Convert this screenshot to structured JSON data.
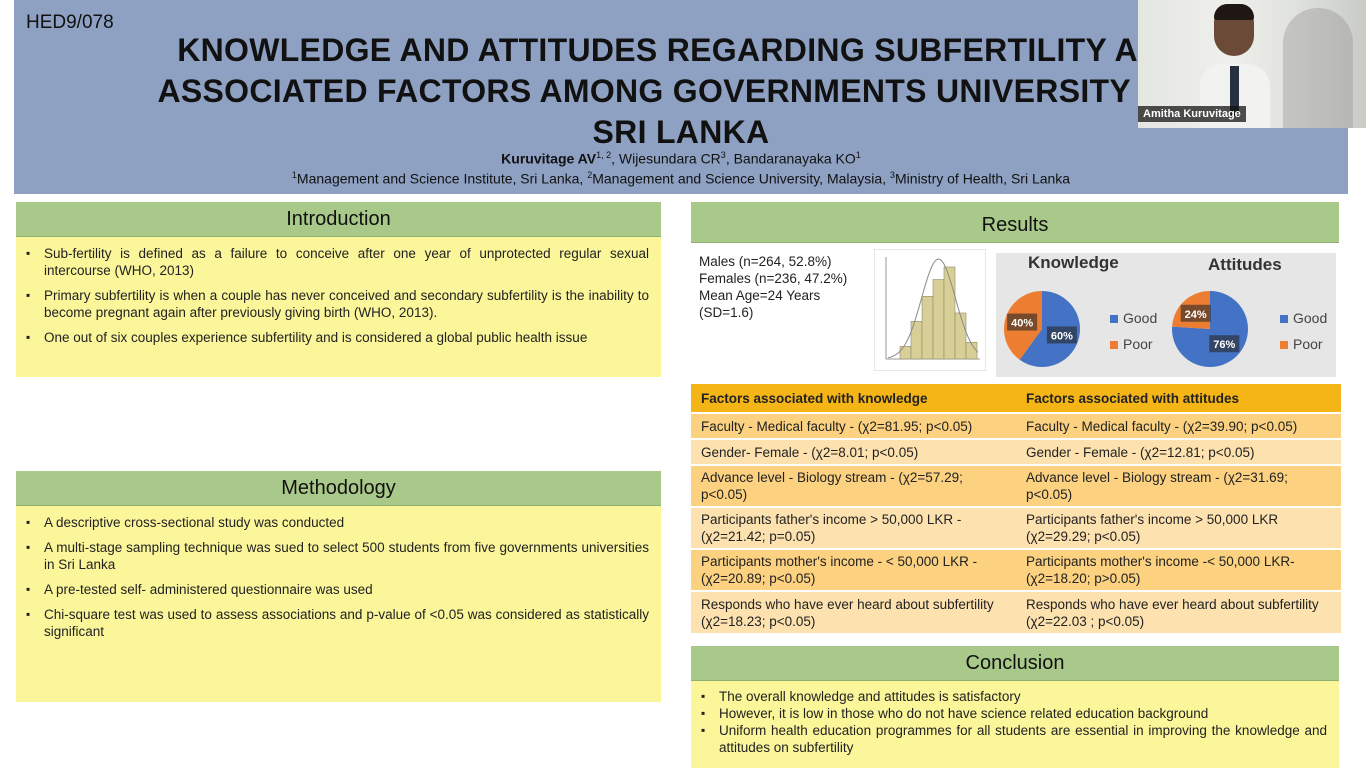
{
  "header": {
    "code": "HED9/078",
    "title_lines": [
      "KNOWLEDGE AND ATTITUDES REGARDING SUBFERTILITY AND",
      "ASSOCIATED FACTORS AMONG GOVERNMENTS UNIVERSITY STU",
      "SRI LANKA"
    ],
    "first_author": "Kuruvitage AV",
    "first_author_sup": "1, 2",
    "other_authors": ", Wijesundara CR",
    "sup_3": "3",
    "sep": ", Bandaranayaka KO",
    "sup_1": "1",
    "affiliations": [
      {
        "sup": "1",
        "text": "Management and Science Institute, Sri Lanka, "
      },
      {
        "sup": "2",
        "text": "Management and Science University, Malaysia, "
      },
      {
        "sup": "3",
        "text": "Ministry of Health, Sri Lanka"
      }
    ]
  },
  "video": {
    "participant_name": "Amitha Kuruvitage"
  },
  "introduction": {
    "heading": "Introduction",
    "bullets": [
      "Sub-fertility is defined as a failure to conceive after one year of unprotected regular sexual intercourse (WHO, 2013)",
      "Primary subfertility is when a couple has never conceived and secondary subfertility is the inability to become pregnant again after previously giving birth (WHO, 2013).",
      "One out of six couples experience subfertility and is considered a global public health issue"
    ]
  },
  "methodology": {
    "heading": "Methodology",
    "bullets": [
      "A descriptive cross-sectional study was conducted",
      "A multi-stage sampling technique was sued to select 500 students from five governments universities in Sri Lanka",
      "A pre-tested self- administered questionnaire was used",
      "Chi-square test was used to assess associations and p-value of <0.05 was considered as statistically significant"
    ]
  },
  "results": {
    "heading": "Results",
    "demographics": [
      "Males (n=264, 52.8%)",
      "Females (n=236, 47.2%)",
      "Mean Age=24 Years",
      "(SD=1.6)"
    ],
    "histogram_bins": [
      3,
      9,
      15,
      19,
      22,
      11,
      4
    ],
    "knowledge": {
      "title": "Knowledge",
      "good_pct": 60,
      "poor_pct": 40,
      "good_label": "60%",
      "poor_label": "40%"
    },
    "attitudes": {
      "title": "Attitudes",
      "good_pct": 76,
      "poor_pct": 24,
      "good_label": "76%",
      "poor_label": "24%"
    },
    "legend_good": "Good",
    "legend_poor": "Poor",
    "colors": {
      "good": "#4472c4",
      "poor": "#ed7d31",
      "section_green": "#a9c98a",
      "box_yellow": "#fbf69a",
      "table_header": "#f5b516"
    }
  },
  "factors": {
    "header_knowledge": "Factors associated with knowledge",
    "header_attitudes": "Factors associated with attitudes",
    "rows": [
      {
        "knowledge": "Faculty - Medical faculty - (χ2=81.95; p<0.05)",
        "attitudes": "Faculty -  Medical faculty - (χ2=39.90; p<0.05)"
      },
      {
        "knowledge": "Gender- Female -  (χ2=8.01; p<0.05)",
        "attitudes": "Gender -   Female -  (χ2=12.81; p<0.05)"
      },
      {
        "knowledge": "Advance level -  Biology stream -  (χ2=57.29; p<0.05)",
        "attitudes": "Advance level -  Biology stream -  (χ2=31.69; p<0.05)"
      },
      {
        "knowledge": "Participants father's income > 50,000 LKR - (χ2=21.42; p=0.05)",
        "attitudes": "Participants father's income > 50,000 LKR (χ2=29.29; p<0.05)"
      },
      {
        "knowledge": "Participants mother's income - < 50,000 LKR - (χ2=20.89; p<0.05)",
        "attitudes": "Participants mother's income -< 50,000 LKR- (χ2=18.20; p>0.05)"
      },
      {
        "knowledge": "Responds who have ever heard about subfertility (χ2=18.23; p<0.05)",
        "attitudes": "Responds who have ever heard about subfertility  (χ2=22.03 ; p<0.05)"
      }
    ]
  },
  "conclusion": {
    "heading": "Conclusion",
    "bullets": [
      "The overall knowledge and attitudes is satisfactory",
      "However, it is low in those who do not have science related education background",
      "Uniform health education programmes for all students are essential in improving the knowledge and attitudes on subfertility"
    ]
  }
}
